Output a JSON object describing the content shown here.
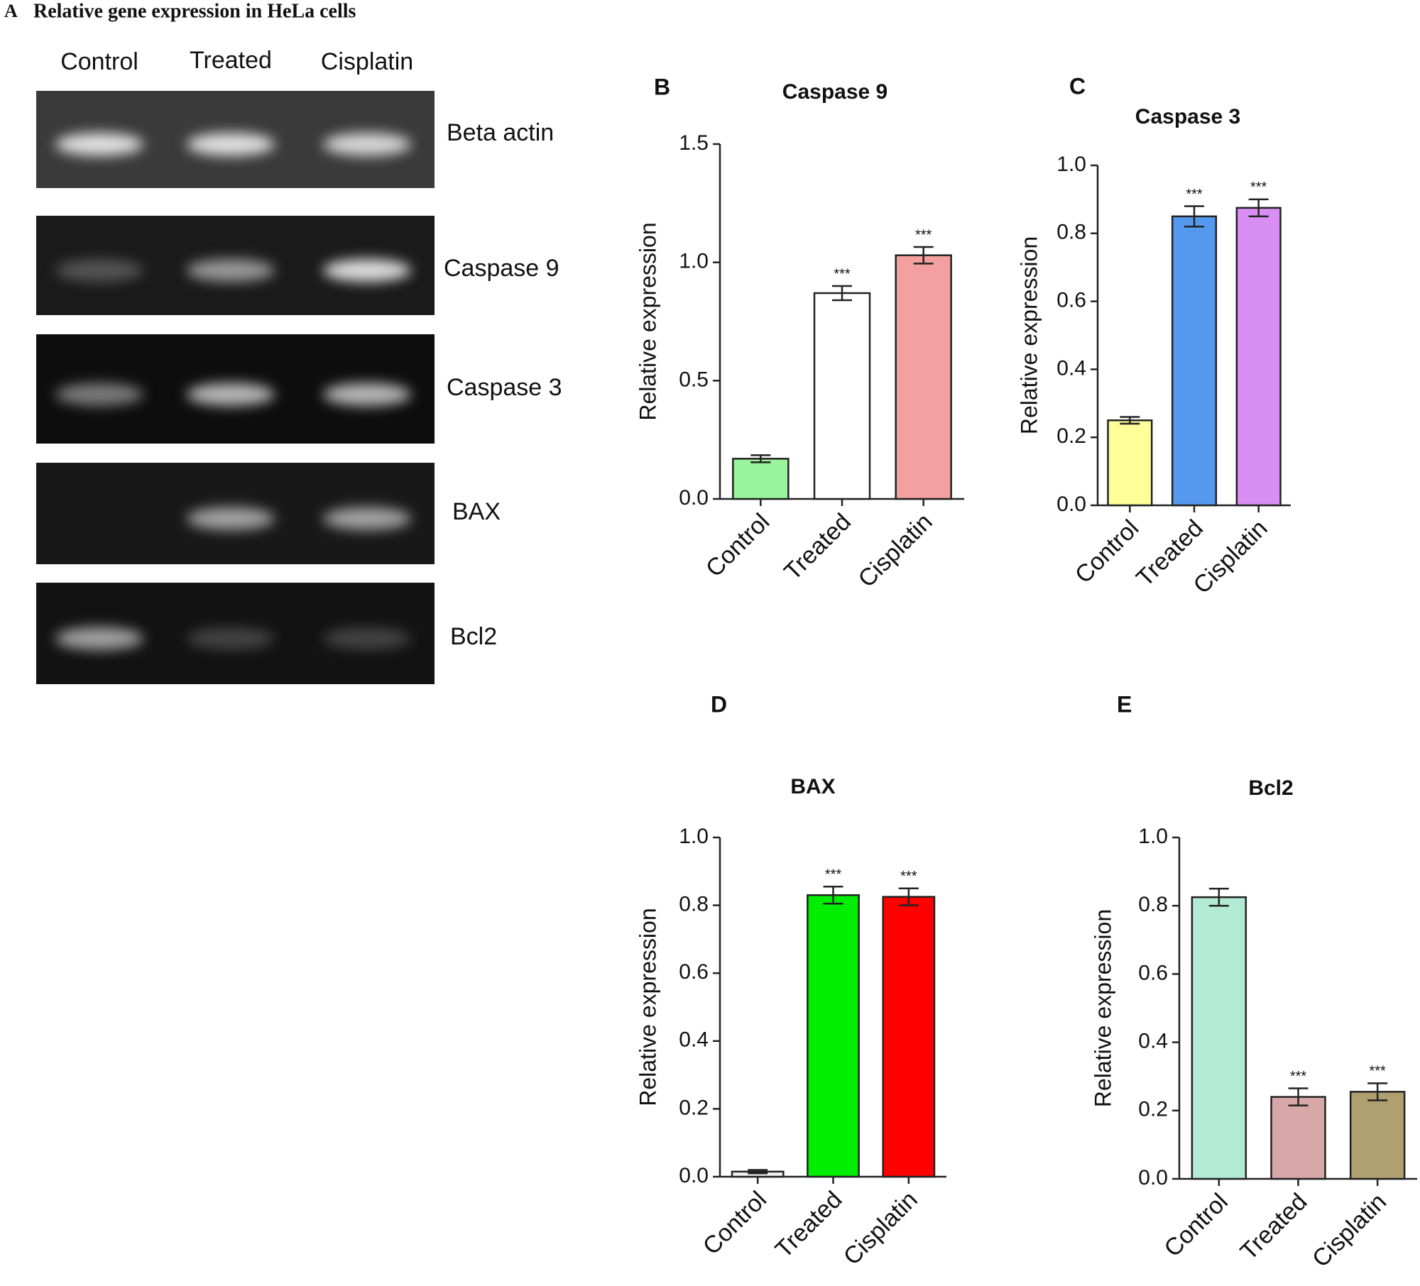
{
  "gel": {
    "panel_label": "A",
    "title": "Relative gene expression in HeLa  cells",
    "lanes": [
      "Control",
      "Treated",
      "Cisplatin"
    ],
    "genes": [
      "Beta actin",
      "Caspase 9",
      "Caspase 3",
      "BAX",
      "Bcl2"
    ]
  },
  "chart_data": [
    {
      "type": "bar",
      "panel_label": "B",
      "title": "Caspase 9",
      "ylabel": "Relative expression",
      "categories": [
        "Control",
        "Treated",
        "Cisplatin"
      ],
      "values": [
        0.17,
        0.87,
        1.03
      ],
      "errors": [
        0.015,
        0.03,
        0.035
      ],
      "annotations": [
        null,
        "***",
        "***"
      ],
      "colors": [
        "#98f59b",
        "#ffffff",
        "#f4a0a0"
      ],
      "ylim": [
        0,
        1.5
      ],
      "yticks": [
        {
          "value": 0,
          "label": "0.0"
        },
        0.5,
        {
          "value": 1,
          "label": "1.0"
        },
        1.5
      ]
    },
    {
      "type": "bar",
      "panel_label": "C",
      "title": "Caspase 3",
      "ylabel": "Relative expression",
      "categories": [
        "Control",
        "Treated",
        "Cisplatin"
      ],
      "values": [
        0.25,
        0.85,
        0.875
      ],
      "errors": [
        0.01,
        0.03,
        0.025
      ],
      "annotations": [
        null,
        "***",
        "***"
      ],
      "colors": [
        "#ffff99",
        "#5599ee",
        "#d88ef2"
      ],
      "ylim": [
        0,
        1
      ],
      "yticks": [
        {
          "value": 0,
          "label": "0.0"
        },
        0.2,
        0.4,
        0.6,
        0.8,
        {
          "value": 1,
          "label": "1.0"
        }
      ]
    },
    {
      "type": "bar",
      "panel_label": "D",
      "title": "BAX",
      "ylabel": "Relative expression",
      "categories": [
        "Control",
        "Treated",
        "Cisplatin"
      ],
      "values": [
        0.015,
        0.83,
        0.825
      ],
      "errors": [
        0.005,
        0.025,
        0.025
      ],
      "annotations": [
        null,
        "***",
        "***"
      ],
      "colors": [
        "#f0f0f0",
        "#00ee00",
        "#ff0000"
      ],
      "ylim": [
        0,
        1
      ],
      "yticks": [
        {
          "value": 0,
          "label": "0.0"
        },
        0.2,
        0.4,
        0.6,
        0.8,
        {
          "value": 1,
          "label": "1.0"
        }
      ]
    },
    {
      "type": "bar",
      "panel_label": "E",
      "title": "Bcl2",
      "ylabel": "Relative expression",
      "categories": [
        "Control",
        "Treated",
        "Cisplatin"
      ],
      "values": [
        0.825,
        0.24,
        0.255
      ],
      "errors": [
        0.025,
        0.025,
        0.025
      ],
      "annotations": [
        null,
        "***",
        "***"
      ],
      "colors": [
        "#b3ead6",
        "#d8a8a8",
        "#b0a070"
      ],
      "ylim": [
        0,
        1
      ],
      "yticks": [
        {
          "value": 0,
          "label": "0.0"
        },
        0.2,
        0.4,
        0.6,
        0.8,
        {
          "value": 1,
          "label": "1.0"
        }
      ]
    }
  ]
}
